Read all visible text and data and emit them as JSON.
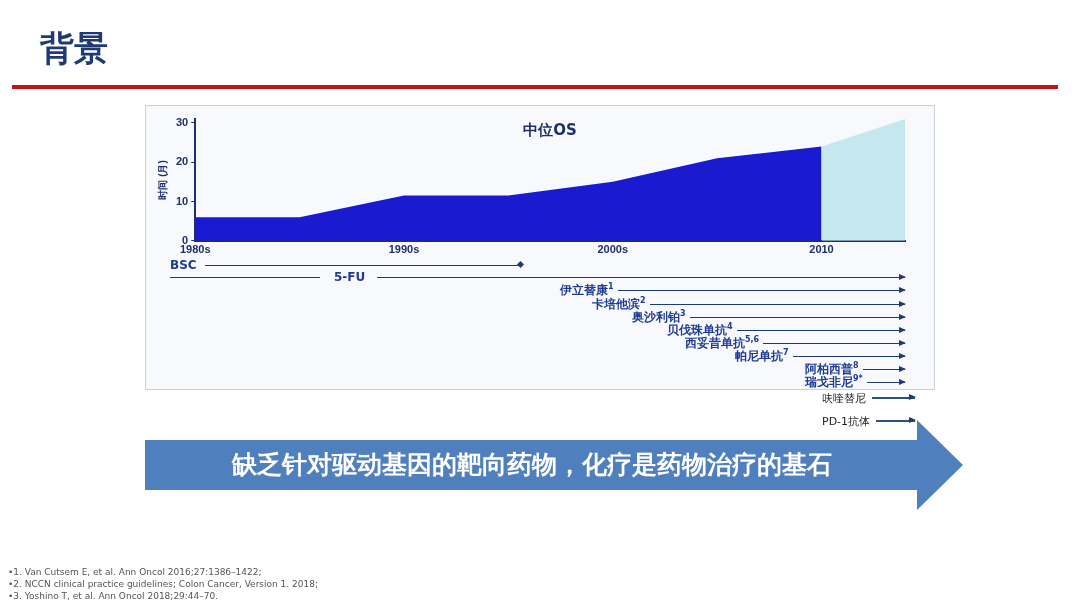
{
  "chart_data": {
    "type": "area",
    "title": "中位OS",
    "ylabel": "时间 (月)",
    "xlim": [
      1980,
      2014
    ],
    "xticks": [
      {
        "value": 1980,
        "label": "1980s"
      },
      {
        "value": 1990,
        "label": "1990s"
      },
      {
        "value": 2000,
        "label": "2000s"
      },
      {
        "value": 2010,
        "label": "2010"
      }
    ],
    "ylim": [
      0,
      31
    ],
    "yticks": [
      0,
      10,
      20,
      30
    ],
    "grid": false,
    "legend": false,
    "series": [
      {
        "type": "area",
        "color": "#1a1ad0",
        "x": [
          1980,
          1985,
          1990,
          1995,
          2000,
          2005,
          2010
        ],
        "values": [
          6,
          6,
          11.5,
          11.5,
          15,
          21,
          24
        ]
      },
      {
        "type": "area",
        "color": "#c5e8ef",
        "x": [
          2010,
          2014
        ],
        "values": [
          24,
          31
        ]
      }
    ],
    "annotations": [
      "背景",
      "BSC",
      "5-FU",
      "伊立替康$^{1}$",
      "卡培他滨$^{2}$",
      "奥沙利铂$^{3}$",
      "贝伐珠单抗$^{4}$",
      "西妥昔单抗$^{5,6}$",
      "帕尼单抗$^{7}$",
      "阿柏西普$^{8}$",
      "瑞戈非尼$^{9*}$",
      "呋喹替尼",
      "PD-1抗体",
      "缺乏针对驱动基因的靶向药物，化疗是药物治疗的基石",
      "•1. Van Cutsem E, et al. Ann Oncol 2016;27:1386–1422;",
      "•2. NCCN clinical practice guidelines; Colon Cancer, Version 1. 2018;",
      "•3. Yoshino T, et al. Ann Oncol 2018;29:44–70."
    ]
  }
}
